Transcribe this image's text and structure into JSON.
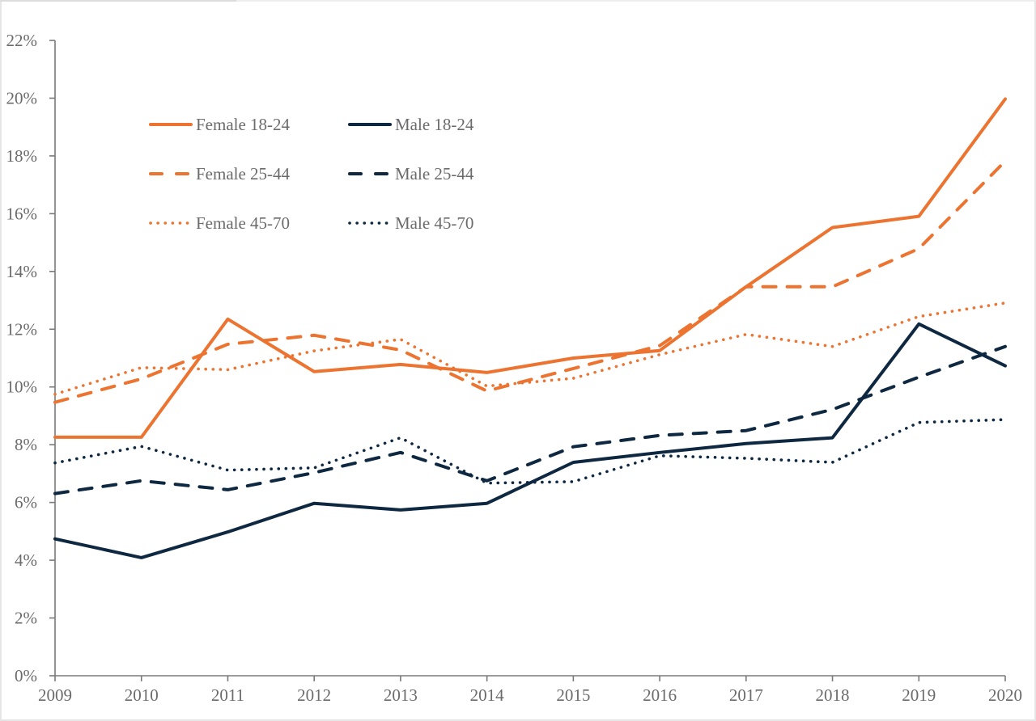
{
  "chart_data": {
    "type": "line",
    "title": "",
    "xlabel": "",
    "ylabel": "",
    "x": [
      "2009",
      "2010",
      "2011",
      "2012",
      "2013",
      "2014",
      "2015",
      "2016",
      "2017",
      "2018",
      "2019",
      "2020"
    ],
    "ylim": [
      0,
      22
    ],
    "yticks": [
      0,
      2,
      4,
      6,
      8,
      10,
      12,
      14,
      16,
      18,
      20,
      22
    ],
    "ytick_labels": [
      "0%",
      "2%",
      "4%",
      "6%",
      "8%",
      "10%",
      "12%",
      "14%",
      "16%",
      "18%",
      "20%",
      "22%"
    ],
    "grid": false,
    "legend_position": "top-left",
    "series": [
      {
        "name": "Female 18-24",
        "color": "#ec7430",
        "style": "solid",
        "values": [
          8.26,
          8.26,
          12.35,
          10.53,
          10.78,
          10.5,
          11.0,
          11.26,
          13.47,
          15.52,
          15.91,
          19.97
        ]
      },
      {
        "name": "Male 18-24",
        "color": "#0e2841",
        "style": "solid",
        "values": [
          4.74,
          4.09,
          4.98,
          5.97,
          5.74,
          5.97,
          7.39,
          7.73,
          8.04,
          8.24,
          12.18,
          10.73
        ]
      },
      {
        "name": "Female 25-44",
        "color": "#ec7430",
        "style": "dashed",
        "values": [
          9.47,
          10.28,
          11.48,
          11.79,
          11.28,
          9.86,
          10.64,
          11.43,
          13.47,
          13.47,
          14.79,
          17.82
        ]
      },
      {
        "name": "Male 25-44",
        "color": "#0e2841",
        "style": "dashed",
        "values": [
          6.31,
          6.75,
          6.44,
          7.03,
          7.73,
          6.75,
          7.93,
          8.32,
          8.49,
          9.22,
          10.34,
          11.4
        ]
      },
      {
        "name": "Female 45-70",
        "color": "#ec7430",
        "style": "dotted",
        "values": [
          9.75,
          10.67,
          10.6,
          11.25,
          11.65,
          10.03,
          10.3,
          11.12,
          11.82,
          11.4,
          12.44,
          12.91
        ]
      },
      {
        "name": "Male 45-70",
        "color": "#0e2841",
        "style": "dotted",
        "values": [
          7.37,
          7.94,
          7.12,
          7.2,
          8.24,
          6.67,
          6.72,
          7.62,
          7.53,
          7.39,
          8.77,
          8.87
        ]
      }
    ]
  }
}
